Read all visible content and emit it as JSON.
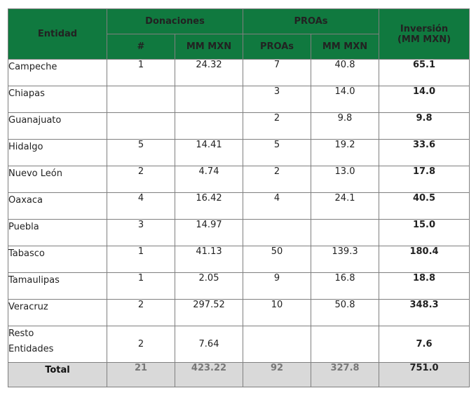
{
  "header": {
    "entidad": "Entidad",
    "donaciones": "Donaciones",
    "proas_group": "PROAs",
    "inversion_line1": "Inversión",
    "inversion_line2": "(MM MXN)",
    "donaciones_count": "#",
    "donaciones_amount": "MM MXN",
    "proas_count": "PROAs",
    "proas_amount": "MM MXN"
  },
  "rows": [
    {
      "entidad": "Campeche",
      "don_n": "1",
      "don_mm": "24.32",
      "proas_n": "7",
      "proas_mm": "40.8",
      "inversion": "65.1"
    },
    {
      "entidad": "Chiapas",
      "don_n": "",
      "don_mm": "",
      "proas_n": "3",
      "proas_mm": "14.0",
      "inversion": "14.0"
    },
    {
      "entidad": "Guanajuato",
      "don_n": "",
      "don_mm": "",
      "proas_n": "2",
      "proas_mm": "9.8",
      "inversion": "9.8"
    },
    {
      "entidad": "Hidalgo",
      "don_n": "5",
      "don_mm": "14.41",
      "proas_n": "5",
      "proas_mm": "19.2",
      "inversion": "33.6"
    },
    {
      "entidad": "Nuevo León",
      "don_n": "2",
      "don_mm": "4.74",
      "proas_n": "2",
      "proas_mm": "13.0",
      "inversion": "17.8"
    },
    {
      "entidad": "Oaxaca",
      "don_n": "4",
      "don_mm": "16.42",
      "proas_n": "4",
      "proas_mm": "24.1",
      "inversion": "40.5"
    },
    {
      "entidad": "Puebla",
      "don_n": "3",
      "don_mm": "14.97",
      "proas_n": "",
      "proas_mm": "",
      "inversion": "15.0"
    },
    {
      "entidad": "Tabasco",
      "don_n": "1",
      "don_mm": "41.13",
      "proas_n": "50",
      "proas_mm": "139.3",
      "inversion": "180.4"
    },
    {
      "entidad": "Tamaulipas",
      "don_n": "1",
      "don_mm": "2.05",
      "proas_n": "9",
      "proas_mm": "16.8",
      "inversion": "18.8"
    },
    {
      "entidad": "Veracruz",
      "don_n": "2",
      "don_mm": "297.52",
      "proas_n": "10",
      "proas_mm": "50.8",
      "inversion": "348.3"
    }
  ],
  "resto": {
    "line1": "Resto",
    "line2": "Entidades",
    "don_n": "2",
    "don_mm": "7.64",
    "proas_n": "",
    "proas_mm": "",
    "inversion": "7.6"
  },
  "total": {
    "label": "Total",
    "don_n": "21",
    "don_mm": "423.22",
    "proas_n": "92",
    "proas_mm": "327.8",
    "inversion": "751.0"
  },
  "colors": {
    "header_green": "#10793f",
    "total_gray": "#d9d9d9"
  }
}
